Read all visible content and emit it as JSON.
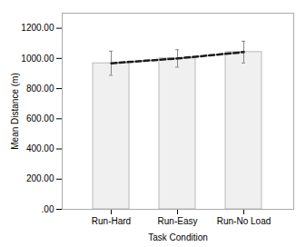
{
  "chart_data": {
    "type": "bar",
    "categories": [
      "Run-Hard",
      "Run-Easy",
      "Run-No Load"
    ],
    "series": [
      {
        "type": "bar",
        "color": "#f0f0f0",
        "values": [
          968.0,
          1000.0,
          1042.0
        ],
        "errors": [
          80.0,
          58.0,
          72.0
        ]
      },
      {
        "type": "line",
        "color": "#1a1a1a",
        "line_style": "dashed",
        "values": [
          968.0,
          1000.0,
          1042.0
        ]
      }
    ],
    "xlabel": "Task Condition",
    "ylabel": "Mean Distance (m)",
    "ylim": [
      0,
      1300
    ],
    "yticks": [
      {
        "value": 0,
        "label": ".00"
      },
      {
        "value": 200,
        "label": "200.00"
      },
      {
        "value": 400,
        "label": "400.00"
      },
      {
        "value": 600,
        "label": "600.00"
      },
      {
        "value": 800,
        "label": "800.00"
      },
      {
        "value": 1000,
        "label": "1000.00"
      },
      {
        "value": 1200,
        "label": "1200.00"
      }
    ],
    "grid": false
  }
}
